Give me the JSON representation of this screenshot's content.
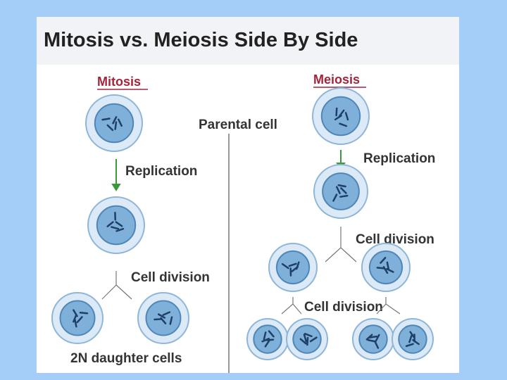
{
  "title": "Mitosis vs. Meiosis Side By Side",
  "parental_label": "Parental cell",
  "mitosis": {
    "heading": "Mitosis",
    "replication": "Replication",
    "division": "Cell division",
    "result": "2N daughter cells"
  },
  "meiosis": {
    "heading": "Meiosis",
    "replication": "Replication",
    "division_1": "Cell division",
    "division_2": "Cell division"
  }
}
